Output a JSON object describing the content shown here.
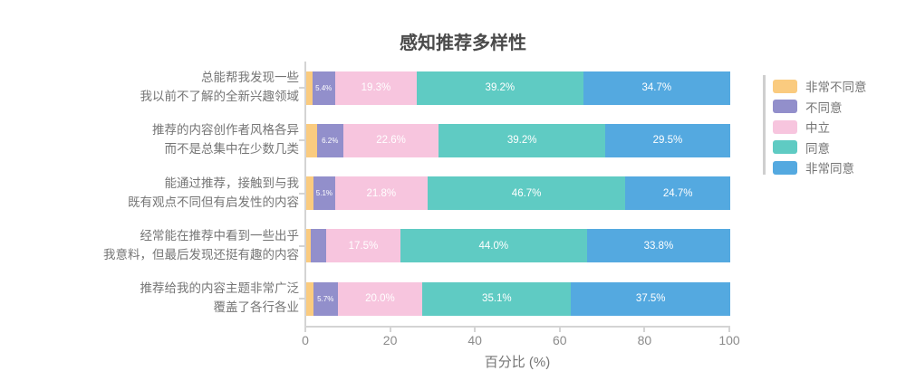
{
  "chart_data": {
    "type": "bar",
    "variant": "horizontal_stacked_percent",
    "title": "感知推荐多样性",
    "xlabel": "百分比 (%)",
    "ylabel": "",
    "xlim": [
      0,
      100
    ],
    "xticks": [
      "0",
      "20",
      "40",
      "60",
      "80",
      "100"
    ],
    "xtick_values": [
      0,
      20,
      40,
      60,
      80,
      100
    ],
    "legend_position": "right",
    "grid": false,
    "series": [
      {
        "name": "非常不同意",
        "color": "#FACB7F",
        "values": [
          1.4,
          2.5,
          1.7,
          1.0,
          1.7
        ]
      },
      {
        "name": "不同意",
        "color": "#928FCB",
        "values": [
          5.4,
          6.2,
          5.1,
          3.7,
          5.7
        ]
      },
      {
        "name": "中立",
        "color": "#F7C5DE",
        "values": [
          19.3,
          22.6,
          21.8,
          17.5,
          20.0
        ]
      },
      {
        "name": "同意",
        "color": "#5FCBC3",
        "values": [
          39.2,
          39.2,
          46.7,
          44.0,
          35.1
        ]
      },
      {
        "name": "非常同意",
        "color": "#54A9E0",
        "values": [
          34.7,
          29.5,
          24.7,
          33.8,
          37.5
        ]
      }
    ],
    "rows": [
      {
        "category_lines": [
          "总能帮我发现一些",
          "我以前不了解的全新兴趣领域"
        ],
        "values": [
          1.4,
          5.4,
          19.3,
          39.2,
          34.7
        ],
        "labels": [
          "",
          "5.4%",
          "19.3%",
          "39.2%",
          "34.7%"
        ]
      },
      {
        "category_lines": [
          "推荐的内容创作者风格各异",
          "而不是总集中在少数几类"
        ],
        "values": [
          2.5,
          6.2,
          22.6,
          39.2,
          29.5
        ],
        "labels": [
          "",
          "6.2%",
          "22.6%",
          "39.2%",
          "29.5%"
        ]
      },
      {
        "category_lines": [
          "能通过推荐，接触到与我",
          "既有观点不同但有启发性的内容"
        ],
        "values": [
          1.7,
          5.1,
          21.8,
          46.7,
          24.7
        ],
        "labels": [
          "",
          "5.1%",
          "21.8%",
          "46.7%",
          "24.7%"
        ]
      },
      {
        "category_lines": [
          "经常能在推荐中看到一些出乎",
          "我意料，但最后发现还挺有趣的内容"
        ],
        "values": [
          1.0,
          3.7,
          17.5,
          44.0,
          33.8
        ],
        "labels": [
          "",
          "",
          "17.5%",
          "44.0%",
          "33.8%"
        ]
      },
      {
        "category_lines": [
          "推荐给我的内容主题非常广泛",
          "覆盖了各行各业"
        ],
        "values": [
          1.7,
          5.7,
          20.0,
          35.1,
          37.5
        ],
        "labels": [
          "",
          "5.7%",
          "20.0%",
          "35.1%",
          "37.5%"
        ]
      }
    ],
    "colors": {
      "axis": "#d4d4d4",
      "label_text": "#757575",
      "tick_text": "#8c8c8c",
      "title_text": "#4a4a4a",
      "bar_label_text": "#ffffff"
    }
  }
}
